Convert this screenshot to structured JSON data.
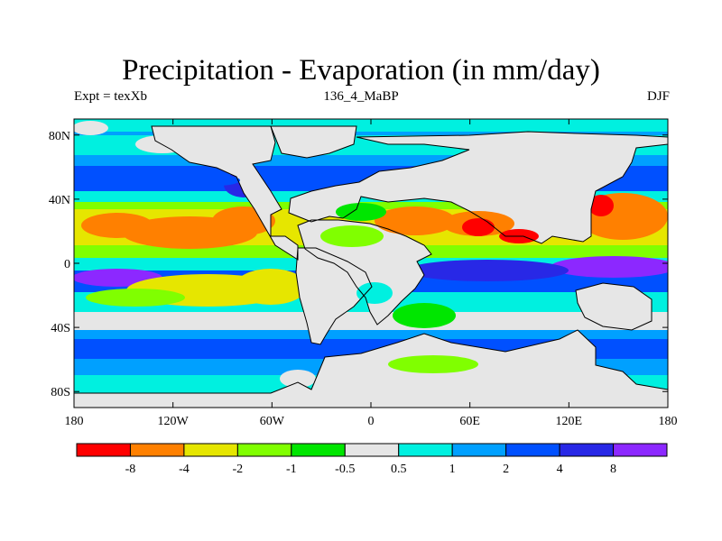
{
  "title": "Precipitation - Evaporation (in mm/day)",
  "subtitle_left": "Expt = texXb",
  "subtitle_center": "136_4_MaBP",
  "subtitle_right": "DJF",
  "map": {
    "lon_range": [
      -180,
      180
    ],
    "lat_range": [
      -90,
      90
    ],
    "x_ticks": [
      {
        "lon": -180,
        "label": "180"
      },
      {
        "lon": -120,
        "label": "120W"
      },
      {
        "lon": -60,
        "label": "60W"
      },
      {
        "lon": 0,
        "label": "0"
      },
      {
        "lon": 60,
        "label": "60E"
      },
      {
        "lon": 120,
        "label": "120E"
      },
      {
        "lon": 180,
        "label": "180"
      }
    ],
    "y_ticks": [
      {
        "lat": 80,
        "label": "80N"
      },
      {
        "lat": 40,
        "label": "40N"
      },
      {
        "lat": 0,
        "label": "0"
      },
      {
        "lat": -40,
        "label": "40S"
      },
      {
        "lat": -80,
        "label": "80S"
      }
    ]
  },
  "colorbar": {
    "colors": [
      "#ff0000",
      "#ff8000",
      "#e6e600",
      "#80ff00",
      "#00e600",
      "#e6e6e6",
      "#00f0e0",
      "#00a0ff",
      "#0050ff",
      "#2828e6",
      "#8c28ff"
    ],
    "labels": [
      "-8",
      "-4",
      "-2",
      "-1",
      "-0.5",
      "0.5",
      "1",
      "2",
      "4",
      "8"
    ]
  },
  "colors": {
    "land": "#e6e6e6",
    "coast": "#000000"
  }
}
